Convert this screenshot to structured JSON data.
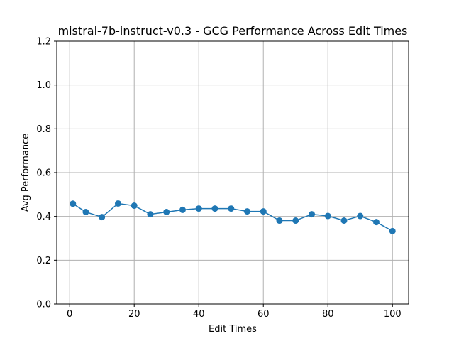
{
  "chart_data": {
    "type": "line",
    "title": "mistral-7b-instruct-v0.3 - GCG Performance Across Edit Times",
    "xlabel": "Edit Times",
    "ylabel": "Avg Performance",
    "xlim": [
      -4,
      105
    ],
    "ylim": [
      0,
      1.2
    ],
    "xticks": [
      0,
      20,
      40,
      60,
      80,
      100
    ],
    "yticks": [
      0.0,
      0.2,
      0.4,
      0.6,
      0.8,
      1.0,
      1.2
    ],
    "xtick_labels": [
      "0",
      "20",
      "40",
      "60",
      "80",
      "100"
    ],
    "ytick_labels": [
      "0.0",
      "0.2",
      "0.4",
      "0.6",
      "0.8",
      "1.0",
      "1.2"
    ],
    "grid": true,
    "color": "#1f77b4",
    "series": [
      {
        "x": [
          1,
          5,
          10,
          15,
          20,
          25,
          30,
          35,
          40,
          45,
          50,
          55,
          60,
          65,
          70,
          75,
          80,
          85,
          90,
          95,
          100
        ],
        "y": [
          0.458,
          0.42,
          0.397,
          0.459,
          0.449,
          0.41,
          0.42,
          0.43,
          0.436,
          0.436,
          0.436,
          0.423,
          0.423,
          0.381,
          0.381,
          0.41,
          0.402,
          0.381,
          0.402,
          0.374,
          0.333
        ]
      }
    ]
  }
}
